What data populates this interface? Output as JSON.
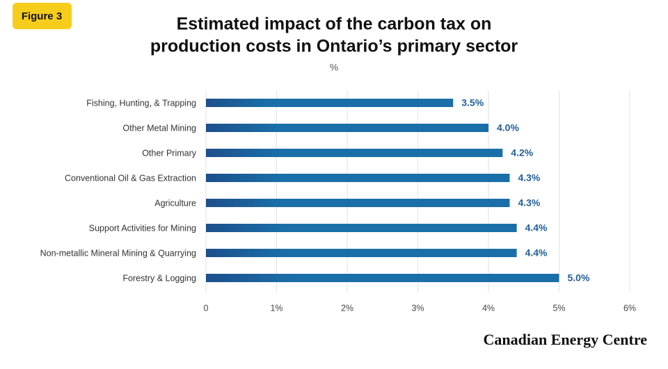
{
  "figure_label": "Figure 3",
  "source": "Canadian Energy Centre",
  "chart_data": {
    "type": "bar",
    "orientation": "horizontal",
    "title_lines": [
      "Estimated impact of the carbon tax on",
      "production costs in Ontario’s primary sector"
    ],
    "subtitle": "%",
    "categories": [
      "Fishing, Hunting, & Trapping",
      "Other Metal Mining",
      "Other Primary",
      "Conventional Oil & Gas Extraction",
      "Agriculture",
      "Support Activities for Mining",
      "Non-metallic Mineral Mining & Quarrying",
      "Forestry & Logging"
    ],
    "values": [
      3.5,
      4.0,
      4.2,
      4.3,
      4.3,
      4.4,
      4.4,
      5.0
    ],
    "value_labels": [
      "3.5%",
      "4.0%",
      "4.2%",
      "4.3%",
      "4.3%",
      "4.4%",
      "4.4%",
      "5.0%"
    ],
    "color": "#1a6fa8",
    "xlim": [
      0,
      6
    ],
    "xticks": [
      0,
      {
        "value": 1,
        "label": "1%"
      },
      {
        "value": 2,
        "label": "2%"
      },
      {
        "value": 3,
        "label": "3%"
      },
      {
        "value": 4,
        "label": "4%"
      },
      {
        "value": 5,
        "label": "5%"
      },
      {
        "value": 6,
        "label": "6%"
      }
    ],
    "grid": true
  }
}
